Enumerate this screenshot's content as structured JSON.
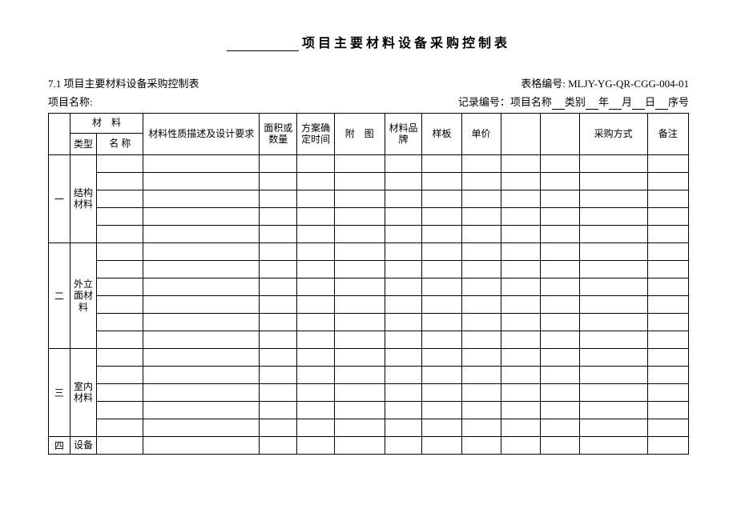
{
  "title_suffix": "项目主要材料设备采购控制表",
  "section_no": "7.1 项目主要材料设备采购控制表",
  "form_code_label": "表格编号: ",
  "form_code": "MLJY-YG-QR-CGG-004-01",
  "project_label": "项目名称:",
  "record_label": "记录编号：项目名称",
  "record_parts": [
    "类别",
    "年",
    "月",
    "日",
    "序号"
  ],
  "headers": {
    "material_group": "材　料",
    "type": "类型",
    "name": "名 称",
    "desc": "材料性质描述及设计要求",
    "qty": "面积或数量",
    "plan": "方案确定时间",
    "attach": "附　图",
    "brand": "材料品牌",
    "sample": "样板",
    "price": "单价",
    "buy": "采购方式",
    "note": "备注"
  },
  "groups": [
    {
      "idx": "一",
      "label": "结构材料",
      "rows": 5
    },
    {
      "idx": "二",
      "label": "外立面材料",
      "rows": 6
    },
    {
      "idx": "三",
      "label": "室内材料",
      "rows": 5
    },
    {
      "idx": "四",
      "label": "设备",
      "rows": 1
    }
  ],
  "data_cols": 11
}
